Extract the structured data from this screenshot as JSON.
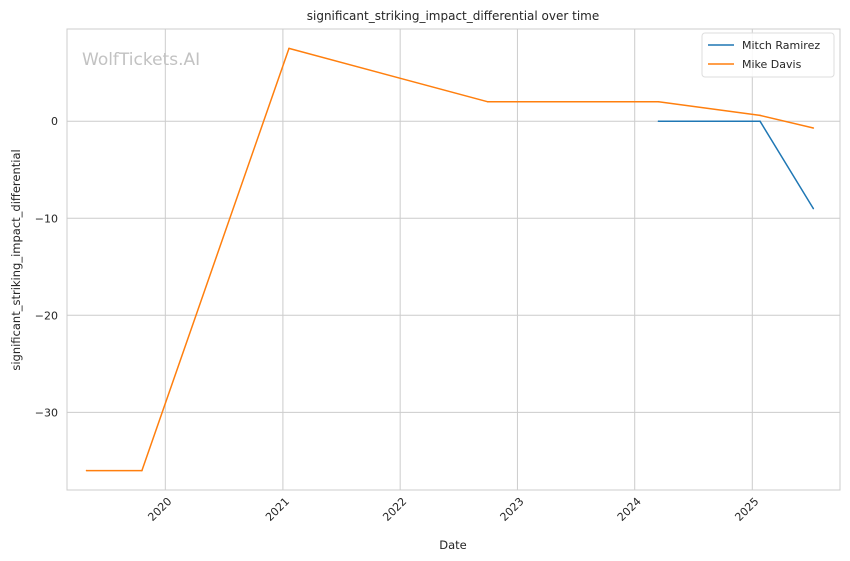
{
  "watermark": "WolfTickets.AI",
  "chart_data": {
    "type": "line",
    "title": "significant_striking_impact_differential over time",
    "xlabel": "Date",
    "ylabel": "significant_striking_impact_differential",
    "xlim": [
      "2019-03-01",
      "2025-10-01"
    ],
    "ylim": [
      -38.0,
      9.5
    ],
    "x_ticks": [
      "2020-01-01",
      "2021-01-01",
      "2022-01-01",
      "2023-01-01",
      "2024-01-01",
      "2025-01-01"
    ],
    "x_tick_labels": [
      "2020",
      "2021",
      "2022",
      "2023",
      "2024",
      "2025"
    ],
    "y_ticks": [
      0,
      -10,
      -20,
      -30
    ],
    "y_tick_labels": [
      "0",
      "−10",
      "−20",
      "−30"
    ],
    "grid": true,
    "legend_position": "top-right",
    "series": [
      {
        "name": "Mitch Ramirez",
        "color": "#1f77b4",
        "points": [
          {
            "x": "2024-03-15",
            "y": 0.0
          },
          {
            "x": "2025-01-25",
            "y": 0.0
          },
          {
            "x": "2025-07-10",
            "y": -9.0
          }
        ]
      },
      {
        "name": "Mike Davis",
        "color": "#ff7f0e",
        "points": [
          {
            "x": "2019-05-01",
            "y": -36.0
          },
          {
            "x": "2019-10-20",
            "y": -36.0
          },
          {
            "x": "2021-01-20",
            "y": 7.5
          },
          {
            "x": "2022-10-01",
            "y": 2.0
          },
          {
            "x": "2024-03-15",
            "y": 2.0
          },
          {
            "x": "2025-01-25",
            "y": 0.6
          },
          {
            "x": "2025-07-10",
            "y": -0.7
          }
        ]
      }
    ]
  }
}
